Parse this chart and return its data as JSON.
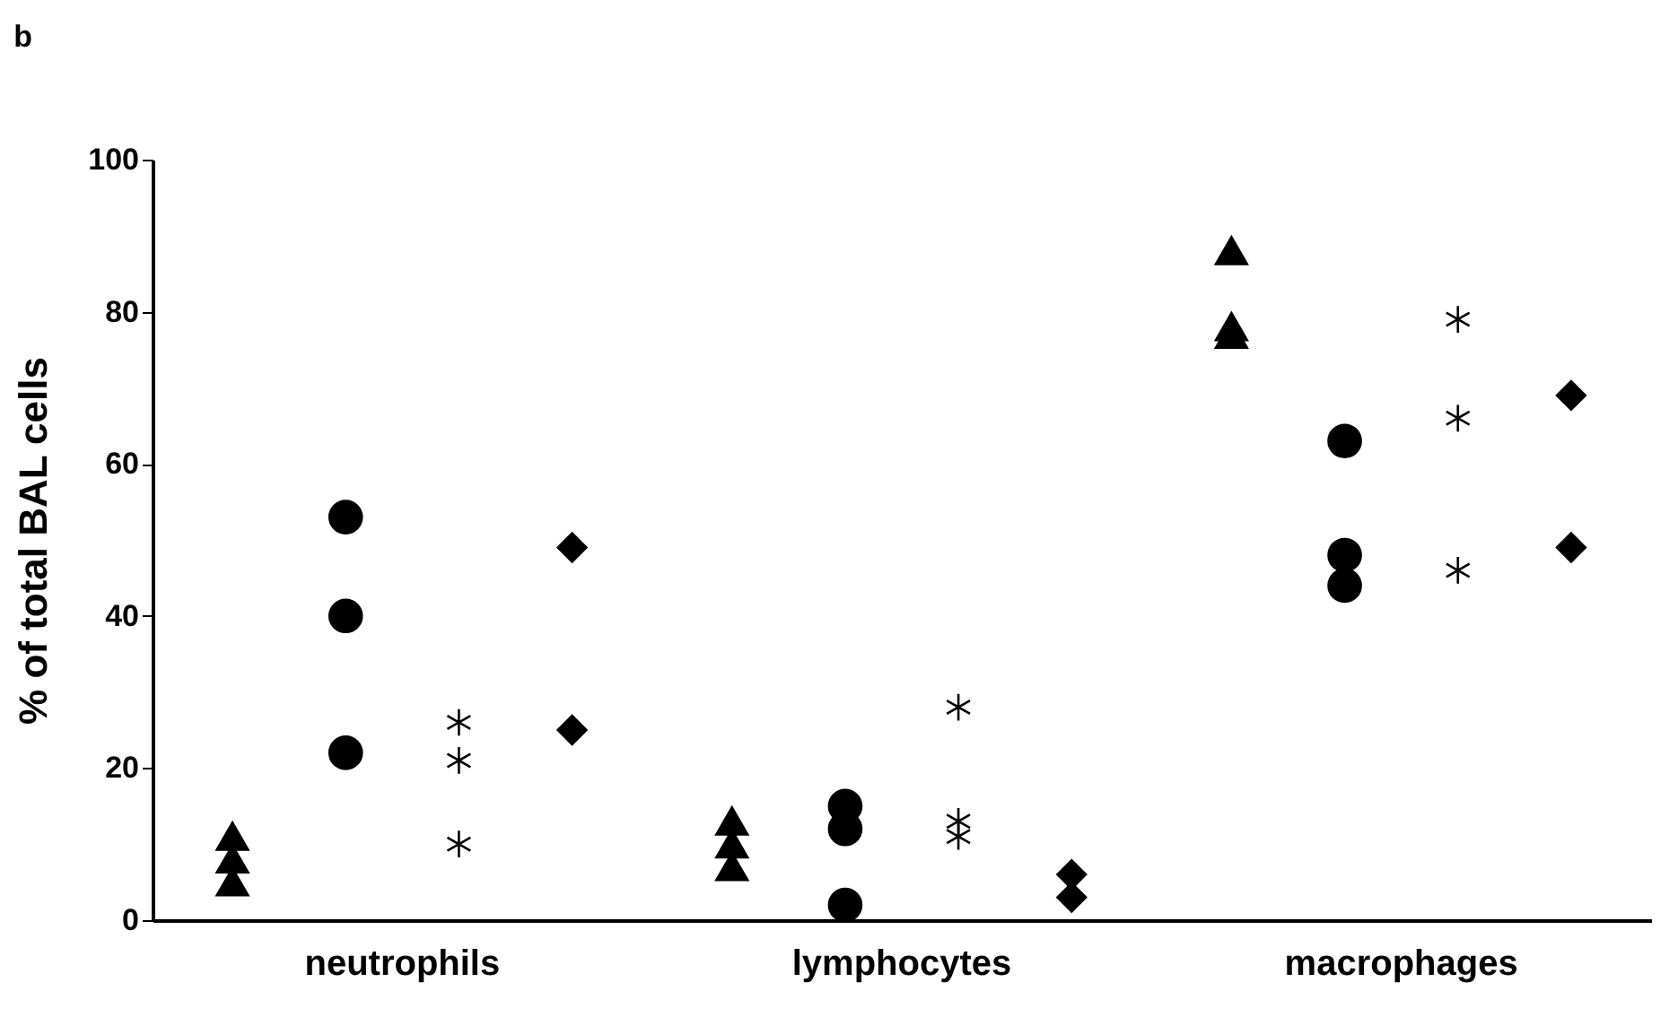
{
  "chart_data": {
    "type": "scatter",
    "ylabel": "% of total BAL cells",
    "annotations": [
      "b"
    ],
    "categories": [
      "neutrophils",
      "lymphocytes",
      "macrophages"
    ],
    "ylim": [
      0,
      100
    ],
    "yticks": [
      0,
      20,
      40,
      60,
      80,
      100
    ],
    "grid": false,
    "series": [
      {
        "marker": "triangle",
        "color": "#000000",
        "x": [
          "neutrophils",
          "neutrophils",
          "neutrophils",
          "lymphocytes",
          "lymphocytes",
          "lymphocytes",
          "macrophages",
          "macrophages",
          "macrophages"
        ],
        "values": [
          11,
          8,
          5,
          13,
          10,
          7,
          88,
          78,
          77
        ]
      },
      {
        "marker": "circle",
        "color": "#000000",
        "x": [
          "neutrophils",
          "neutrophils",
          "neutrophils",
          "lymphocytes",
          "lymphocytes",
          "lymphocytes",
          "macrophages",
          "macrophages",
          "macrophages"
        ],
        "values": [
          53,
          40,
          22,
          15,
          12,
          2,
          63,
          48,
          44
        ]
      },
      {
        "marker": "cross",
        "color": "#000000",
        "x": [
          "neutrophils",
          "neutrophils",
          "neutrophils",
          "lymphocytes",
          "lymphocytes",
          "lymphocytes",
          "macrophages",
          "macrophages",
          "macrophages"
        ],
        "values": [
          26,
          21,
          10,
          28,
          13,
          11,
          79,
          66,
          46
        ]
      },
      {
        "marker": "diamond",
        "color": "#000000",
        "x": [
          "neutrophils",
          "neutrophils",
          "lymphocytes",
          "lymphocytes",
          "macrophages",
          "macrophages"
        ],
        "values": [
          49,
          25,
          6,
          3,
          69,
          49
        ]
      }
    ]
  }
}
